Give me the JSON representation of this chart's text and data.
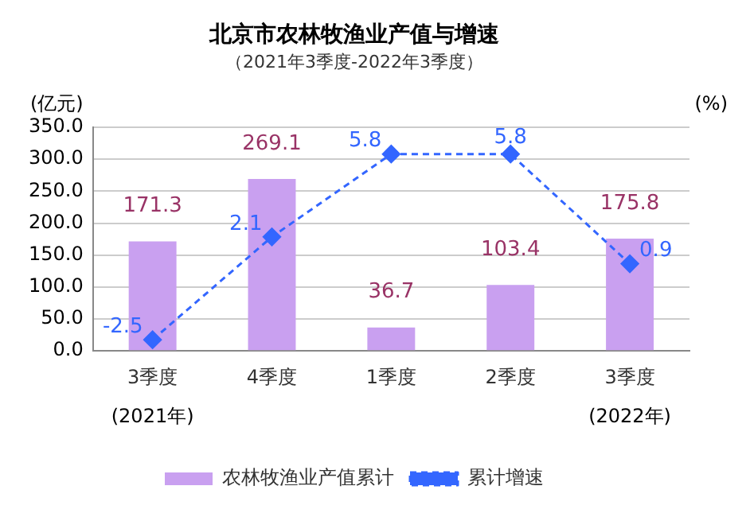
{
  "chart_data": {
    "type": "bar",
    "title": "北京市农林牧渔业产值与增速",
    "subtitle": "（2021年3季度-2022年3季度）",
    "ylabel": "(亿元)",
    "y2label": "(%)",
    "categories": [
      "3季度",
      "4季度",
      "1季度",
      "2季度",
      "3季度"
    ],
    "series": [
      {
        "name": "农林牧渔业产值累计",
        "color": "#c9a0f0",
        "values": [
          171.3,
          269.1,
          36.7,
          103.4,
          175.8
        ]
      },
      {
        "name": "累计增速",
        "type": "line",
        "axis": "y2",
        "color": "#3366ff",
        "marker": "diamond",
        "line_style": "dashed",
        "values": [
          -2.5,
          2.1,
          5.8,
          5.8,
          0.9
        ]
      }
    ],
    "ylim": [
      0,
      350
    ],
    "yticks": [
      {
        "value": 0,
        "label": "0.0"
      },
      {
        "value": 50,
        "label": "50.0"
      },
      {
        "value": 100,
        "label": "100.0"
      },
      {
        "value": 150,
        "label": "150.0"
      },
      {
        "value": 200,
        "label": "200.0"
      },
      {
        "value": 250,
        "label": "250.0"
      },
      {
        "value": 300,
        "label": "300.0"
      },
      {
        "value": 350,
        "label": "350.0"
      }
    ],
    "y2lim": [
      -3,
      7
    ],
    "annotations": [
      "(2021年)",
      "(2022年)"
    ],
    "data_labels": true,
    "grid": "y",
    "legend": "bottom"
  }
}
